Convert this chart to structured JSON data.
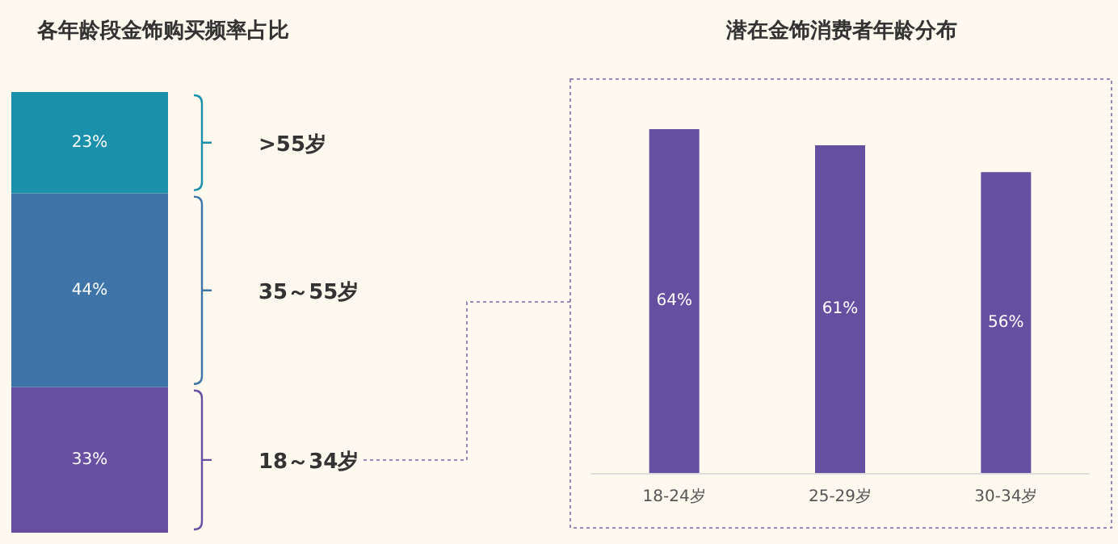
{
  "chart_data": [
    {
      "type": "bar",
      "title": "各年龄段金饰购买频率占比",
      "categories": [
        null
      ],
      "stacked": true,
      "legend": "right",
      "ylim": [
        0,
        100
      ],
      "tick_labels": false,
      "series": [
        {
          "name": "18～34岁",
          "color": "#684fa1",
          "values": [
            33
          ],
          "value_labels": [
            "33%"
          ]
        },
        {
          "name": "35～55岁",
          "color": "#3e74a8",
          "values": [
            44
          ],
          "value_labels": [
            "44%"
          ]
        },
        {
          "name": ">55岁",
          "color": "#1a90aa",
          "values": [
            23
          ],
          "value_labels": [
            "23%"
          ]
        }
      ]
    },
    {
      "type": "bar",
      "title": "潜在金饰消费者年龄分布",
      "categories": [
        "18-24岁",
        "25-29岁",
        "30-34岁"
      ],
      "values": [
        64,
        61,
        56
      ],
      "value_labels": [
        "64%",
        "61%",
        "56%"
      ],
      "color": "#654fa0",
      "tick_labels": "x"
    }
  ]
}
